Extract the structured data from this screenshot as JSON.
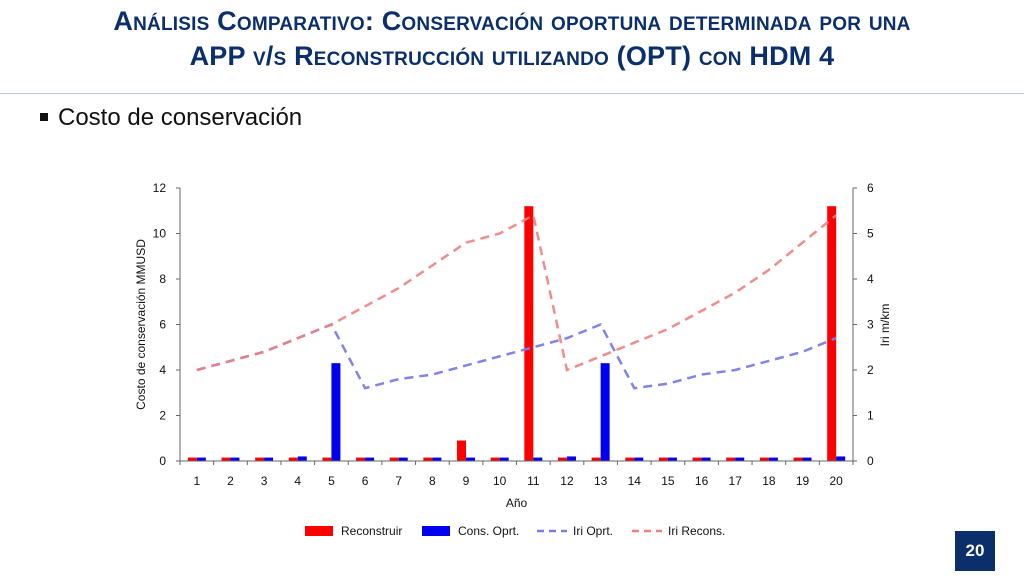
{
  "slide": {
    "title_line1": "Análisis Comparativo: Conservación oportuna determinada por una",
    "title_line2": "APP v/s Reconstrucción utilizando (OPT) con HDM 4",
    "bullet": "Costo de conservación",
    "page_number": "20"
  },
  "colors": {
    "title": "#0b2f6b",
    "reconstruir": "#ff0000",
    "cons_oprt": "#0000ee",
    "iri_oprt": "#7b7bea",
    "iri_recons": "#f08080"
  },
  "chart_data": {
    "type": "bar",
    "xlabel": "Año",
    "ylabel": "Costo de conservación  MMUSD",
    "y2label": "Iri m/km",
    "categories": [
      "1",
      "2",
      "3",
      "4",
      "5",
      "6",
      "7",
      "8",
      "9",
      "10",
      "11",
      "12",
      "13",
      "14",
      "15",
      "16",
      "17",
      "18",
      "19",
      "20"
    ],
    "ylim": [
      0,
      12
    ],
    "y_ticks": [
      "0",
      "2",
      "4",
      "6",
      "8",
      "10",
      "12"
    ],
    "y2lim": [
      0,
      6
    ],
    "y2_ticks": [
      "0",
      "1",
      "2",
      "3",
      "4",
      "5",
      "6"
    ],
    "bar_series": [
      {
        "name": "Reconstruir",
        "values": [
          0.15,
          0.15,
          0.15,
          0.15,
          0.15,
          0.15,
          0.15,
          0.15,
          0.9,
          0.15,
          11.2,
          0.15,
          0.15,
          0.15,
          0.15,
          0.15,
          0.15,
          0.15,
          0.15,
          11.2
        ]
      },
      {
        "name": "Cons. Oprt.",
        "values": [
          0.15,
          0.15,
          0.15,
          0.2,
          4.3,
          0.15,
          0.15,
          0.15,
          0.15,
          0.15,
          0.15,
          0.2,
          4.3,
          0.15,
          0.15,
          0.15,
          0.15,
          0.15,
          0.15,
          0.2
        ]
      }
    ],
    "line_series": [
      {
        "name": "Iri Oprt.",
        "axis": "right",
        "values": [
          2.0,
          2.2,
          2.4,
          2.7,
          3.0,
          1.6,
          1.8,
          1.9,
          2.1,
          2.3,
          2.5,
          2.7,
          3.0,
          1.6,
          1.7,
          1.9,
          2.0,
          2.2,
          2.4,
          2.7
        ]
      },
      {
        "name": "Iri Recons.",
        "axis": "right",
        "values": [
          2.0,
          2.2,
          2.4,
          2.7,
          3.0,
          3.4,
          3.8,
          4.3,
          4.8,
          5.0,
          5.4,
          2.0,
          2.3,
          2.6,
          2.9,
          3.3,
          3.7,
          4.2,
          4.8,
          5.4
        ]
      }
    ],
    "legend": "bottom",
    "grid": false
  }
}
